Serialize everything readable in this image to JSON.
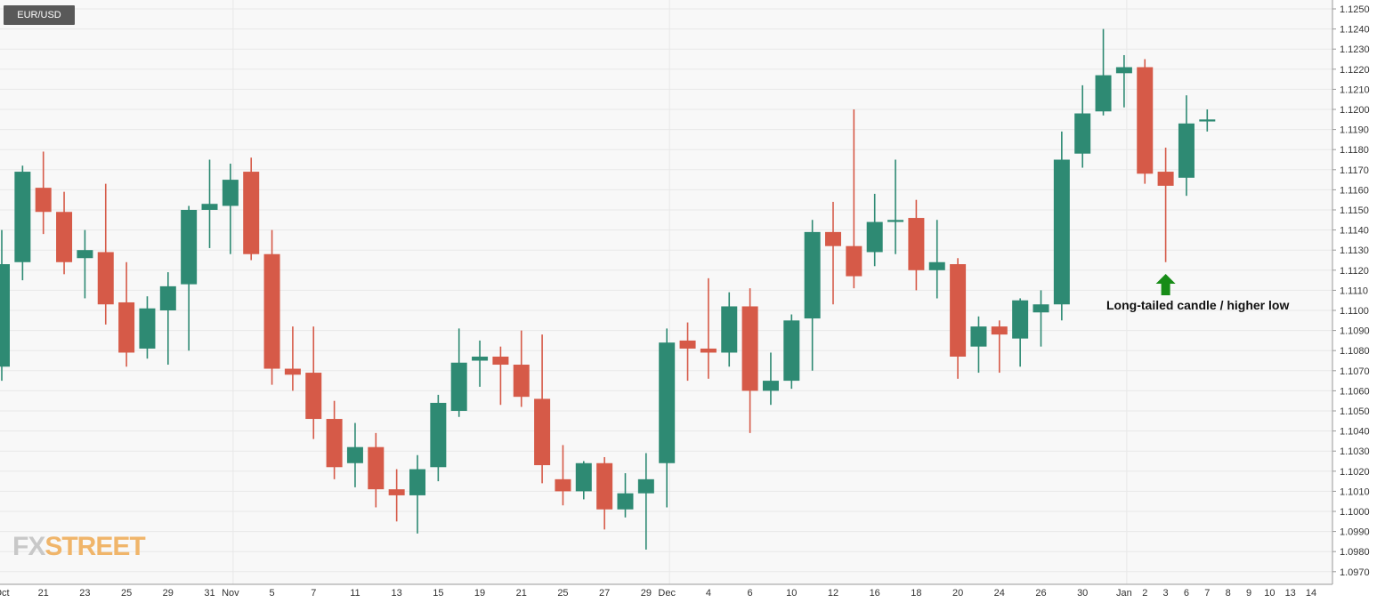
{
  "symbol": "EUR/USD",
  "annotation": "Long-tailed candle / higher low",
  "logo": {
    "part1": "FX",
    "part2": "STREET"
  },
  "colors": {
    "up": "#2e8a73",
    "down": "#d65a48",
    "arrow": "#178c17",
    "grid": "#e8e8e8",
    "plot_bg": "#f8f8f8"
  },
  "chart_data": {
    "type": "candlestick",
    "ylim": [
      1.0965,
      1.1255
    ],
    "yticks": [
      "1.0970",
      "1.0980",
      "1.0990",
      "1.1000",
      "1.1010",
      "1.1020",
      "1.1030",
      "1.1040",
      "1.1050",
      "1.1060",
      "1.1070",
      "1.1080",
      "1.1090",
      "1.1100",
      "1.1110",
      "1.1120",
      "1.1130",
      "1.1140",
      "1.1150",
      "1.1160",
      "1.1170",
      "1.1180",
      "1.1190",
      "1.1200",
      "1.1210",
      "1.1220",
      "1.1230",
      "1.1240",
      "1.1250"
    ],
    "xticks": [
      {
        "slot": 0,
        "label": "Oct"
      },
      {
        "slot": 2,
        "label": "21"
      },
      {
        "slot": 4,
        "label": "23"
      },
      {
        "slot": 6,
        "label": "25"
      },
      {
        "slot": 8,
        "label": "29"
      },
      {
        "slot": 10,
        "label": "31"
      },
      {
        "slot": 11,
        "label": "Nov"
      },
      {
        "slot": 13,
        "label": "5"
      },
      {
        "slot": 15,
        "label": "7"
      },
      {
        "slot": 17,
        "label": "11"
      },
      {
        "slot": 19,
        "label": "13"
      },
      {
        "slot": 21,
        "label": "15"
      },
      {
        "slot": 23,
        "label": "19"
      },
      {
        "slot": 25,
        "label": "21"
      },
      {
        "slot": 27,
        "label": "25"
      },
      {
        "slot": 29,
        "label": "27"
      },
      {
        "slot": 31,
        "label": "29"
      },
      {
        "slot": 32,
        "label": "Dec"
      },
      {
        "slot": 34,
        "label": "4"
      },
      {
        "slot": 36,
        "label": "6"
      },
      {
        "slot": 38,
        "label": "10"
      },
      {
        "slot": 40,
        "label": "12"
      },
      {
        "slot": 42,
        "label": "16"
      },
      {
        "slot": 44,
        "label": "18"
      },
      {
        "slot": 46,
        "label": "20"
      },
      {
        "slot": 48,
        "label": "24"
      },
      {
        "slot": 50,
        "label": "26"
      },
      {
        "slot": 52,
        "label": "30"
      },
      {
        "slot": 54,
        "label": "Jan"
      },
      {
        "slot": 55,
        "label": "2"
      },
      {
        "slot": 56,
        "label": "3"
      },
      {
        "slot": 57,
        "label": "6"
      },
      {
        "slot": 58,
        "label": "7"
      },
      {
        "slot": 59,
        "label": "8"
      },
      {
        "slot": 60,
        "label": "9"
      },
      {
        "slot": 61,
        "label": "10"
      },
      {
        "slot": 62,
        "label": "13"
      },
      {
        "slot": 63,
        "label": "14"
      }
    ],
    "candles": [
      {
        "slot": 0,
        "open": 1.1072,
        "high": 1.114,
        "low": 1.1065,
        "close": 1.1123
      },
      {
        "slot": 1,
        "open": 1.1124,
        "high": 1.1172,
        "low": 1.1115,
        "close": 1.1169
      },
      {
        "slot": 2,
        "open": 1.1161,
        "high": 1.1179,
        "low": 1.1138,
        "close": 1.1149
      },
      {
        "slot": 3,
        "open": 1.1149,
        "high": 1.1159,
        "low": 1.1118,
        "close": 1.1124
      },
      {
        "slot": 4,
        "open": 1.1126,
        "high": 1.114,
        "low": 1.1106,
        "close": 1.113
      },
      {
        "slot": 5,
        "open": 1.1129,
        "high": 1.1163,
        "low": 1.1093,
        "close": 1.1103
      },
      {
        "slot": 6,
        "open": 1.1104,
        "high": 1.1124,
        "low": 1.1072,
        "close": 1.1079
      },
      {
        "slot": 7,
        "open": 1.1081,
        "high": 1.1107,
        "low": 1.1076,
        "close": 1.1101
      },
      {
        "slot": 8,
        "open": 1.11,
        "high": 1.1119,
        "low": 1.1073,
        "close": 1.1112
      },
      {
        "slot": 9,
        "open": 1.1113,
        "high": 1.1152,
        "low": 1.108,
        "close": 1.115
      },
      {
        "slot": 10,
        "open": 1.115,
        "high": 1.1175,
        "low": 1.1131,
        "close": 1.1153
      },
      {
        "slot": 11,
        "open": 1.1152,
        "high": 1.1173,
        "low": 1.1128,
        "close": 1.1165
      },
      {
        "slot": 12,
        "open": 1.1169,
        "high": 1.1176,
        "low": 1.1125,
        "close": 1.1128
      },
      {
        "slot": 13,
        "open": 1.1128,
        "high": 1.114,
        "low": 1.1063,
        "close": 1.1071
      },
      {
        "slot": 14,
        "open": 1.1071,
        "high": 1.1092,
        "low": 1.106,
        "close": 1.1068
      },
      {
        "slot": 15,
        "open": 1.1069,
        "high": 1.1092,
        "low": 1.1036,
        "close": 1.1046
      },
      {
        "slot": 16,
        "open": 1.1046,
        "high": 1.1055,
        "low": 1.1016,
        "close": 1.1022
      },
      {
        "slot": 17,
        "open": 1.1024,
        "high": 1.1044,
        "low": 1.1012,
        "close": 1.1032
      },
      {
        "slot": 18,
        "open": 1.1032,
        "high": 1.1039,
        "low": 1.1002,
        "close": 1.1011
      },
      {
        "slot": 19,
        "open": 1.1011,
        "high": 1.1021,
        "low": 1.0995,
        "close": 1.1008
      },
      {
        "slot": 20,
        "open": 1.1008,
        "high": 1.1028,
        "low": 1.0989,
        "close": 1.1021
      },
      {
        "slot": 21,
        "open": 1.1022,
        "high": 1.1058,
        "low": 1.1015,
        "close": 1.1054
      },
      {
        "slot": 22,
        "open": 1.105,
        "high": 1.1091,
        "low": 1.1047,
        "close": 1.1074
      },
      {
        "slot": 23,
        "open": 1.1075,
        "high": 1.1085,
        "low": 1.1062,
        "close": 1.1077
      },
      {
        "slot": 24,
        "open": 1.1077,
        "high": 1.1082,
        "low": 1.1053,
        "close": 1.1073
      },
      {
        "slot": 25,
        "open": 1.1073,
        "high": 1.109,
        "low": 1.1052,
        "close": 1.1057
      },
      {
        "slot": 26,
        "open": 1.1056,
        "high": 1.1088,
        "low": 1.1014,
        "close": 1.1023
      },
      {
        "slot": 27,
        "open": 1.1016,
        "high": 1.1033,
        "low": 1.1003,
        "close": 1.101
      },
      {
        "slot": 28,
        "open": 1.101,
        "high": 1.1025,
        "low": 1.1006,
        "close": 1.1024
      },
      {
        "slot": 29,
        "open": 1.1024,
        "high": 1.1027,
        "low": 1.0991,
        "close": 1.1001
      },
      {
        "slot": 30,
        "open": 1.1001,
        "high": 1.1019,
        "low": 1.0997,
        "close": 1.1009
      },
      {
        "slot": 31,
        "open": 1.1009,
        "high": 1.1029,
        "low": 1.0981,
        "close": 1.1016
      },
      {
        "slot": 32,
        "open": 1.1024,
        "high": 1.1091,
        "low": 1.1002,
        "close": 1.1084
      },
      {
        "slot": 33,
        "open": 1.1085,
        "high": 1.1094,
        "low": 1.1065,
        "close": 1.1081
      },
      {
        "slot": 34,
        "open": 1.1081,
        "high": 1.1116,
        "low": 1.1066,
        "close": 1.1079
      },
      {
        "slot": 35,
        "open": 1.1079,
        "high": 1.1109,
        "low": 1.1072,
        "close": 1.1102
      },
      {
        "slot": 36,
        "open": 1.1102,
        "high": 1.1111,
        "low": 1.1039,
        "close": 1.106
      },
      {
        "slot": 37,
        "open": 1.106,
        "high": 1.1079,
        "low": 1.1053,
        "close": 1.1065
      },
      {
        "slot": 38,
        "open": 1.1065,
        "high": 1.1098,
        "low": 1.1061,
        "close": 1.1095
      },
      {
        "slot": 39,
        "open": 1.1096,
        "high": 1.1145,
        "low": 1.107,
        "close": 1.1139
      },
      {
        "slot": 40,
        "open": 1.1139,
        "high": 1.1154,
        "low": 1.1103,
        "close": 1.1132
      },
      {
        "slot": 41,
        "open": 1.1132,
        "high": 1.12,
        "low": 1.1111,
        "close": 1.1117
      },
      {
        "slot": 42,
        "open": 1.1129,
        "high": 1.1158,
        "low": 1.1122,
        "close": 1.1144
      },
      {
        "slot": 43,
        "open": 1.1144,
        "high": 1.1175,
        "low": 1.1128,
        "close": 1.1145
      },
      {
        "slot": 44,
        "open": 1.1146,
        "high": 1.1155,
        "low": 1.111,
        "close": 1.112
      },
      {
        "slot": 45,
        "open": 1.112,
        "high": 1.1145,
        "low": 1.1106,
        "close": 1.1124
      },
      {
        "slot": 46,
        "open": 1.1123,
        "high": 1.1126,
        "low": 1.1066,
        "close": 1.1077
      },
      {
        "slot": 47,
        "open": 1.1082,
        "high": 1.1097,
        "low": 1.1069,
        "close": 1.1092
      },
      {
        "slot": 48,
        "open": 1.1092,
        "high": 1.1095,
        "low": 1.1069,
        "close": 1.1088
      },
      {
        "slot": 49,
        "open": 1.1086,
        "high": 1.1106,
        "low": 1.1072,
        "close": 1.1105
      },
      {
        "slot": 50,
        "open": 1.1099,
        "high": 1.111,
        "low": 1.1082,
        "close": 1.1103
      },
      {
        "slot": 51,
        "open": 1.1103,
        "high": 1.1189,
        "low": 1.1095,
        "close": 1.1175
      },
      {
        "slot": 52,
        "open": 1.1178,
        "high": 1.1212,
        "low": 1.1171,
        "close": 1.1198
      },
      {
        "slot": 53,
        "open": 1.1199,
        "high": 1.124,
        "low": 1.1197,
        "close": 1.1217
      },
      {
        "slot": 54,
        "open": 1.1218,
        "high": 1.1227,
        "low": 1.1201,
        "close": 1.1221
      },
      {
        "slot": 55,
        "open": 1.1221,
        "high": 1.1225,
        "low": 1.1163,
        "close": 1.1168
      },
      {
        "slot": 56,
        "open": 1.1169,
        "high": 1.1181,
        "low": 1.1124,
        "close": 1.1162
      },
      {
        "slot": 57,
        "open": 1.1166,
        "high": 1.1207,
        "low": 1.1157,
        "close": 1.1193
      },
      {
        "slot": 58,
        "open": 1.1194,
        "high": 1.12,
        "low": 1.1189,
        "close": 1.1195
      }
    ]
  }
}
